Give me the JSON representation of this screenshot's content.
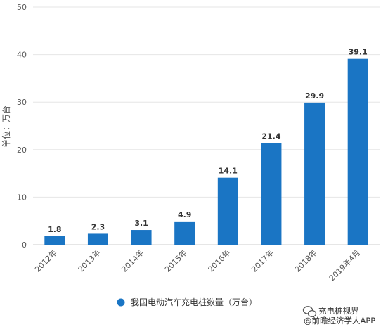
{
  "chart_data": {
    "type": "bar",
    "categories": [
      "2012年",
      "2013年",
      "2014年",
      "2015年",
      "2016年",
      "2017年",
      "2018年",
      "2019年4月"
    ],
    "series": [
      {
        "name": "我国电动汽车充电桩数量（万台）",
        "values": [
          1.8,
          2.3,
          3.1,
          4.9,
          14.1,
          21.4,
          29.9,
          39.1
        ]
      }
    ],
    "data_labels": [
      "1.8",
      "2.3",
      "3.1",
      "4.9",
      "14.1",
      "21.4",
      "29.9",
      "39.1"
    ],
    "ylabel": "单位：万台",
    "ylim": [
      0,
      50
    ],
    "yticks": [
      0,
      10,
      20,
      30,
      40,
      50
    ],
    "grid": true,
    "legend_position": "bottom",
    "bar_color": "#1a75c4"
  },
  "footer": {
    "line1": "充电桩视界",
    "line2": "@前瞻经济学人APP"
  }
}
